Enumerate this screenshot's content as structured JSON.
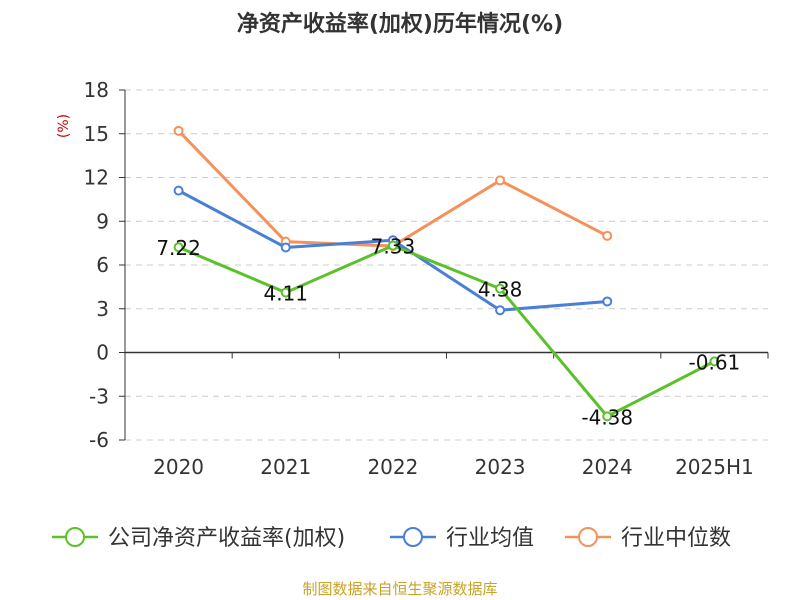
{
  "chart_data": {
    "type": "line",
    "title": "净资产收益率(加权)历年情况(%)",
    "ylabel": "(%)",
    "categories": [
      "2020",
      "2021",
      "2022",
      "2023",
      "2024",
      "2025H1"
    ],
    "yticks": [
      18,
      15,
      12,
      9,
      6,
      3,
      0,
      -3,
      -6
    ],
    "ylim": [
      -6,
      18
    ],
    "grid": true,
    "legend_position": "bottom",
    "series": [
      {
        "name": "公司净资产收益率(加权)",
        "color": "#5bc128",
        "values": [
          7.22,
          4.11,
          7.33,
          4.38,
          -4.38,
          -0.61
        ],
        "labels": [
          "7.22",
          "4.11",
          "7.33",
          "4.38",
          "-4.38",
          "-0.61"
        ]
      },
      {
        "name": "行业均值",
        "color": "#4a7fd6",
        "values": [
          11.1,
          7.2,
          7.7,
          2.9,
          3.5,
          null
        ]
      },
      {
        "name": "行业中位数",
        "color": "#f5925b",
        "values": [
          15.2,
          7.6,
          7.3,
          11.8,
          8.0,
          null
        ]
      }
    ]
  },
  "footer": "制图数据来自恒生聚源数据库"
}
